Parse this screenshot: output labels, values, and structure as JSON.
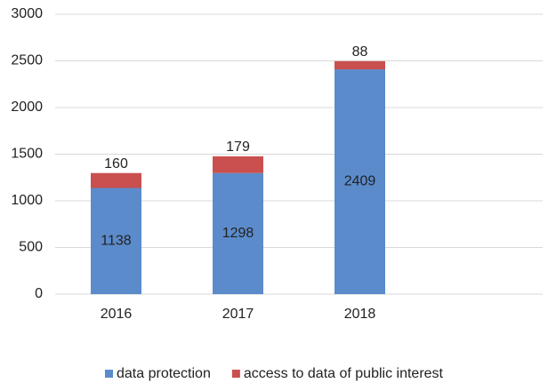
{
  "chart_data": {
    "type": "stacked_bar",
    "categories": [
      "2016",
      "2017",
      "2018",
      null
    ],
    "series": [
      {
        "name": "data protection",
        "color": "#5b8bcb",
        "values": [
          1138,
          1298,
          2409,
          null
        ]
      },
      {
        "name": "access to data of public interest",
        "color": "#c9504e",
        "values": [
          160,
          179,
          88,
          null
        ]
      }
    ],
    "ylim": [
      0,
      3000
    ],
    "yticks": [
      0,
      500,
      1000,
      1500,
      2000,
      2500,
      3000
    ],
    "grid": true,
    "legend": "bottom"
  }
}
